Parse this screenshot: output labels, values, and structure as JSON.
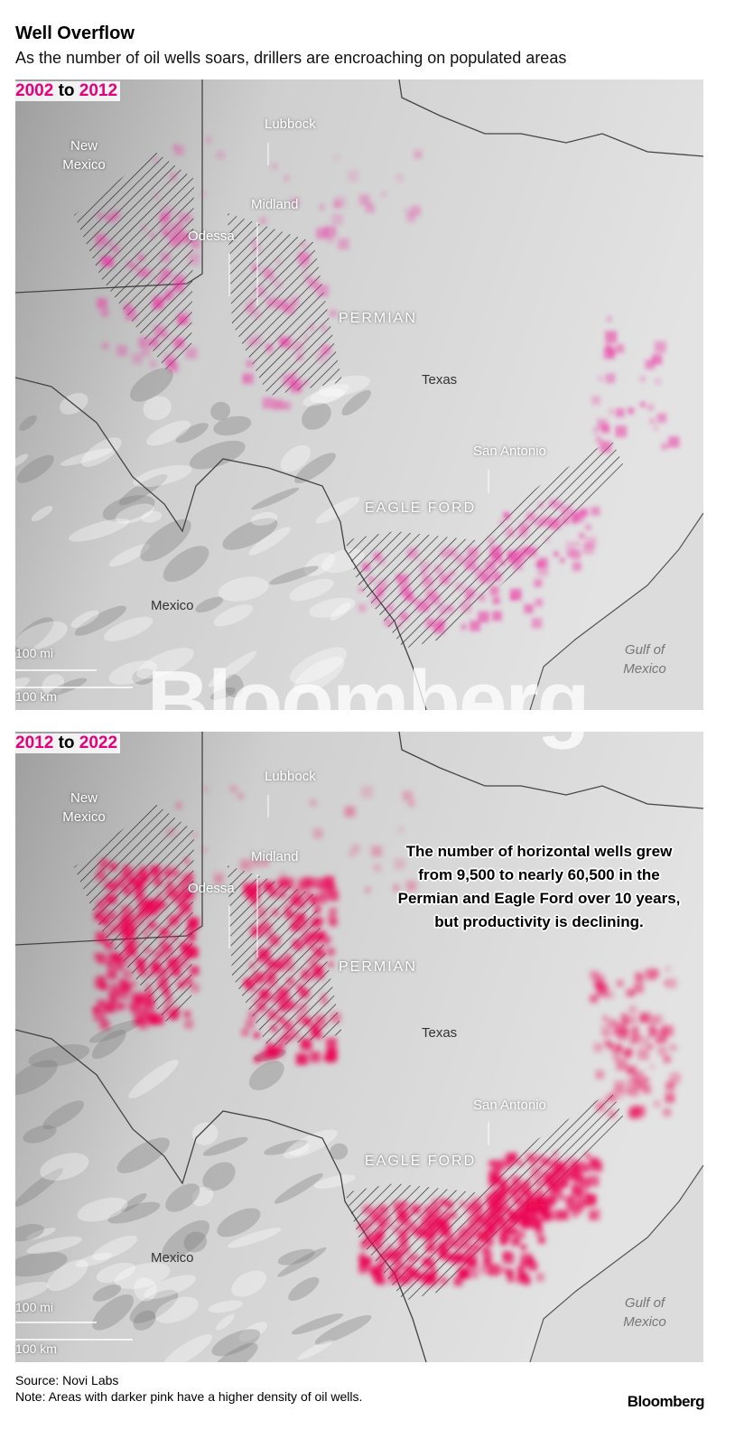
{
  "header": {
    "title": "Well Overflow",
    "subtitle": "As the number of oil wells soars, drillers are encroaching on populated areas"
  },
  "maps": [
    {
      "period": {
        "start": "2002",
        "connector": "to",
        "end": "2012"
      },
      "places": {
        "lubbock": "Lubbock",
        "new_mexico": "New Mexico",
        "midland": "Midland",
        "odessa": "Odessa",
        "permian": "PERMIAN",
        "texas": "Texas",
        "san_antonio": "San Antonio",
        "eagle_ford": "EAGLE FORD",
        "mexico": "Mexico",
        "gulf": "Gulf of Mexico"
      },
      "scale": {
        "miles": "100 mi",
        "km": "100 km"
      }
    },
    {
      "period": {
        "start": "2012",
        "connector": "to",
        "end": "2022"
      },
      "places": {
        "lubbock": "Lubbock",
        "new_mexico": "New Mexico",
        "midland": "Midland",
        "odessa": "Odessa",
        "permian": "PERMIAN",
        "texas": "Texas",
        "san_antonio": "San Antonio",
        "eagle_ford": "EAGLE FORD",
        "mexico": "Mexico",
        "gulf": "Gulf of Mexico"
      },
      "scale": {
        "miles": "100 mi",
        "km": "100 km"
      },
      "annotation": "The number of horizontal wells grew from 9,500 to nearly 60,500 in the Permian and Eagle Ford over 10 years, but productivity is declining."
    }
  ],
  "watermark": "Bloomberg",
  "footer": {
    "source": "Source: Novi Labs",
    "note": "Note: Areas with darker pink have a higher density of oil wells.",
    "logo": "Bloomberg"
  }
}
